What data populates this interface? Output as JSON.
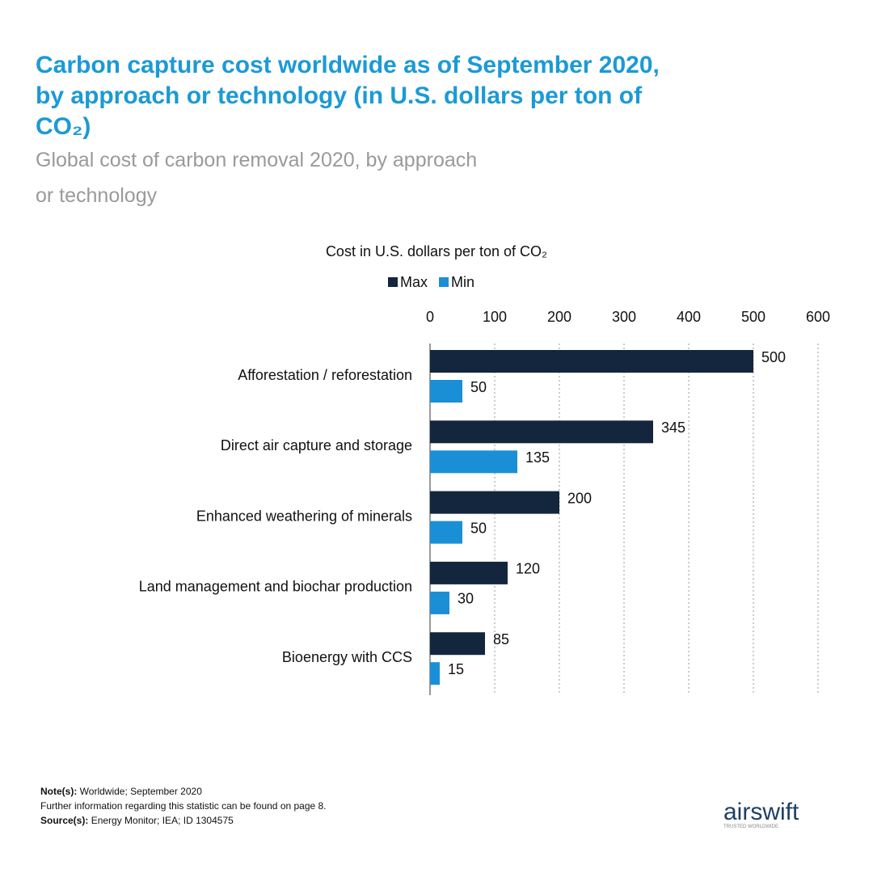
{
  "chart_data": {
    "type": "bar",
    "orientation": "horizontal",
    "title": "Carbon capture cost worldwide as of September 2020, by approach or technology (in U.S. dollars per ton of CO₂)",
    "subtitle": "Global cost of carbon removal 2020, by approach or technology",
    "x_label": "Cost in U.S. dollars per ton of CO₂",
    "categories": [
      "Afforestation / reforestation",
      "Direct air capture and storage",
      "Enhanced weathering of minerals",
      "Land management and biochar production",
      "Bioenergy with CCS"
    ],
    "series": [
      {
        "name": "Max",
        "color": "#13263d",
        "values": [
          500,
          345,
          200,
          120,
          85
        ]
      },
      {
        "name": "Min",
        "color": "#1b8fd6",
        "values": [
          50,
          135,
          50,
          30,
          15
        ]
      }
    ],
    "xlim": [
      0,
      600
    ],
    "xticks": [
      0,
      100,
      200,
      300,
      400,
      500,
      600
    ],
    "grid": true,
    "legend": "top"
  },
  "footer": {
    "note_label": "Note(s):",
    "note": "Worldwide; September 2020",
    "further": "Further information regarding this statistic can be found on page 8.",
    "source_label": "Source(s):",
    "source": "Energy Monitor; IEA; ID 1304575"
  },
  "logo": {
    "name": "airswift",
    "tagline": "TRUSTED WORLDWIDE"
  }
}
